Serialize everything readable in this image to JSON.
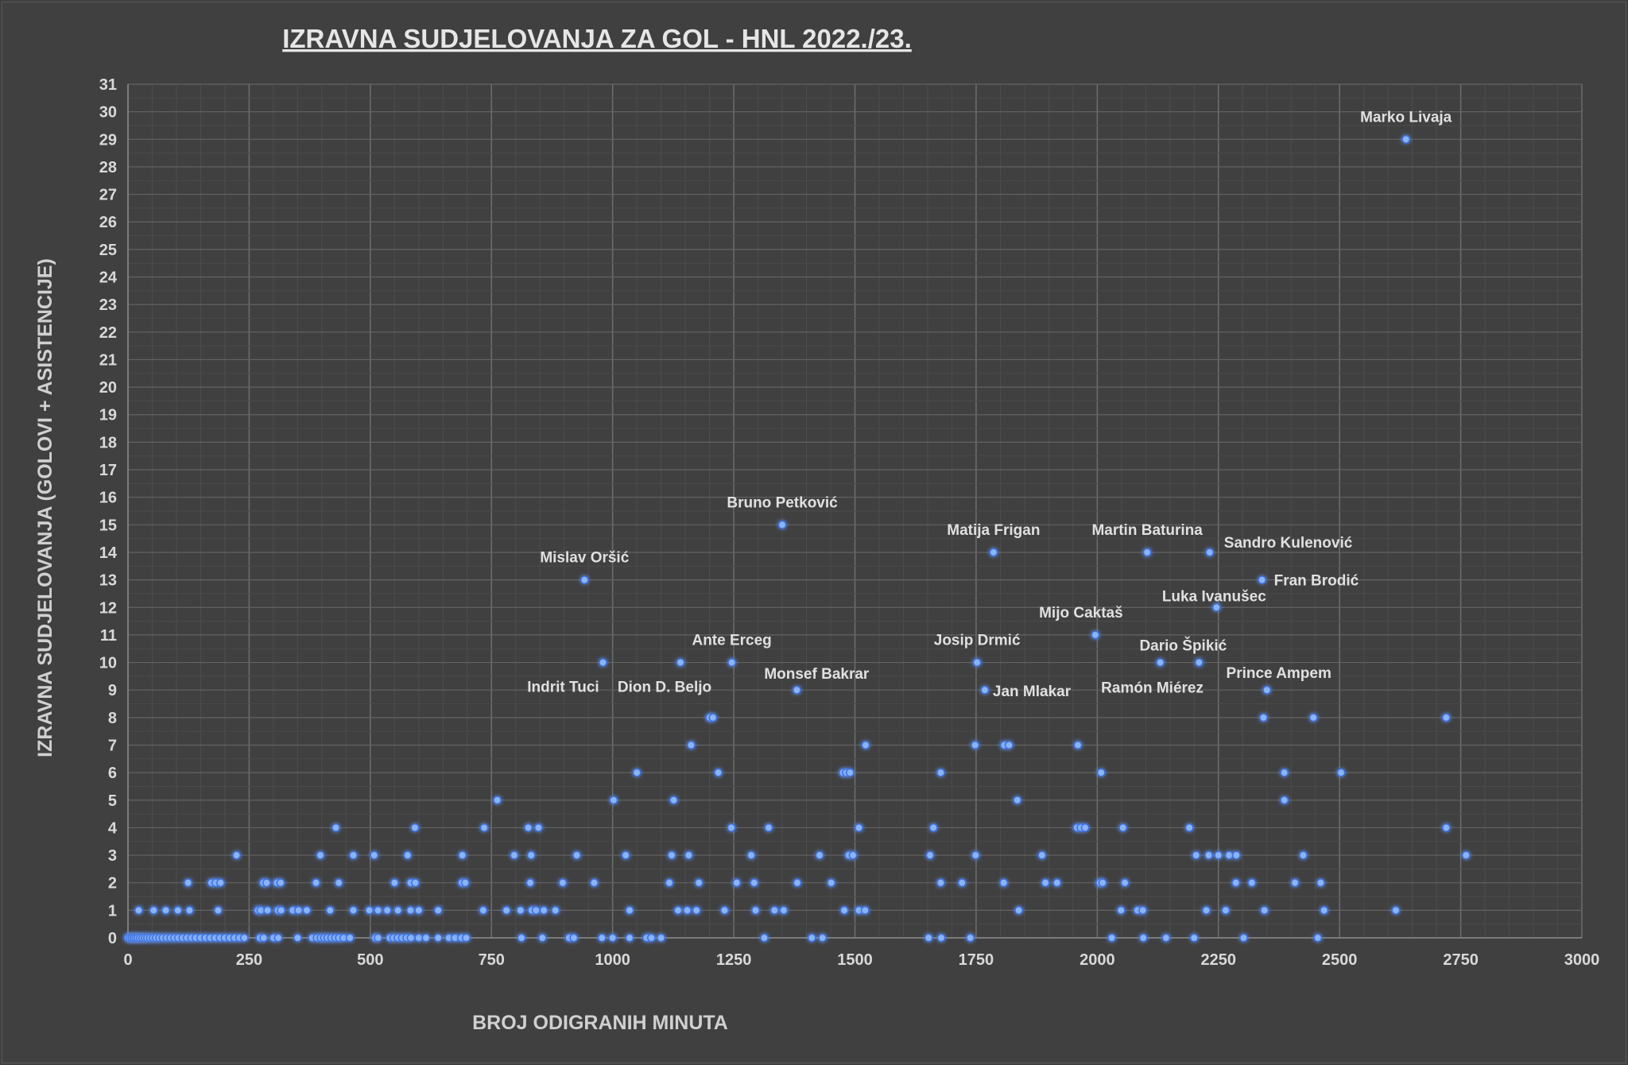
{
  "chart_data": {
    "type": "scatter",
    "title": "IZRAVNA SUDJELOVANJA ZA GOL - HNL 2022./23.",
    "xlabel": "BROJ ODIGRANIH MINUTA",
    "ylabel": "IZRAVNA SUDJELOVANJA (GOLOVI + ASISTENCIJE)",
    "xlim": [
      0,
      3000
    ],
    "ylim": [
      0,
      31
    ],
    "x_ticks": [
      0,
      250,
      500,
      750,
      1000,
      1250,
      1500,
      1750,
      2000,
      2250,
      2500,
      2750,
      3000
    ],
    "y_ticks": [
      0,
      1,
      2,
      3,
      4,
      5,
      6,
      7,
      8,
      9,
      10,
      11,
      12,
      13,
      14,
      15,
      16,
      17,
      18,
      19,
      20,
      21,
      22,
      23,
      24,
      25,
      26,
      27,
      28,
      29,
      30,
      31
    ],
    "grid": "major and minor",
    "marker_color": "#8ab4f8",
    "background_color": "#404040",
    "labeled_points": [
      {
        "name": "Marko Livaja",
        "x": 2637,
        "y": 29
      },
      {
        "name": "Bruno Petković",
        "x": 1350,
        "y": 15
      },
      {
        "name": "Matija Frigan",
        "x": 1786,
        "y": 14
      },
      {
        "name": "Martin Baturina",
        "x": 2103,
        "y": 14
      },
      {
        "name": "Sandro Kulenović",
        "x": 2232,
        "y": 14
      },
      {
        "name": "Mislav Oršić",
        "x": 942,
        "y": 13
      },
      {
        "name": "Fran Brodić",
        "x": 2340,
        "y": 13
      },
      {
        "name": "Luka Ivanušec",
        "x": 2246,
        "y": 12
      },
      {
        "name": "Mijo Caktaš",
        "x": 1996,
        "y": 11
      },
      {
        "name": "Ante Erceg",
        "x": 1246,
        "y": 10
      },
      {
        "name": "Josip Drmić",
        "x": 1752,
        "y": 10
      },
      {
        "name": "Dario Špikić",
        "x": 2210,
        "y": 10
      },
      {
        "name": "Indrit Tuci",
        "x": 980,
        "y": 10
      },
      {
        "name": "Dion D. Beljo",
        "x": 1140,
        "y": 10
      },
      {
        "name": "Monsef Bakrar",
        "x": 1380,
        "y": 9
      },
      {
        "name": "Jan Mlakar",
        "x": 1768,
        "y": 9
      },
      {
        "name": "Ramón Miérez",
        "x": 2130,
        "y": 10
      },
      {
        "name": "Prince Ampem",
        "x": 2350,
        "y": 9
      }
    ],
    "points": [
      [
        2637,
        29
      ],
      [
        1350,
        15
      ],
      [
        1786,
        14
      ],
      [
        2103,
        14
      ],
      [
        2232,
        14
      ],
      [
        942,
        13
      ],
      [
        2340,
        13
      ],
      [
        2246,
        12
      ],
      [
        1996,
        11
      ],
      [
        980,
        10
      ],
      [
        1140,
        10
      ],
      [
        1246,
        10
      ],
      [
        1752,
        10
      ],
      [
        2130,
        10
      ],
      [
        2210,
        10
      ],
      [
        1380,
        9
      ],
      [
        1768,
        9
      ],
      [
        2350,
        9
      ],
      [
        1200,
        8
      ],
      [
        1207,
        8
      ],
      [
        2343,
        8
      ],
      [
        2446,
        8
      ],
      [
        2720,
        8
      ],
      [
        1162,
        7
      ],
      [
        1522,
        7
      ],
      [
        1748,
        7
      ],
      [
        1808,
        7
      ],
      [
        1818,
        7
      ],
      [
        1960,
        7
      ],
      [
        1050,
        6
      ],
      [
        1218,
        6
      ],
      [
        1475,
        6
      ],
      [
        1482,
        6
      ],
      [
        1490,
        6
      ],
      [
        1677,
        6
      ],
      [
        2008,
        6
      ],
      [
        2386,
        6
      ],
      [
        2503,
        6
      ],
      [
        762,
        5
      ],
      [
        1002,
        5
      ],
      [
        1126,
        5
      ],
      [
        1835,
        5
      ],
      [
        2386,
        5
      ],
      [
        429,
        4
      ],
      [
        592,
        4
      ],
      [
        735,
        4
      ],
      [
        826,
        4
      ],
      [
        847,
        4
      ],
      [
        1245,
        4
      ],
      [
        1322,
        4
      ],
      [
        1508,
        4
      ],
      [
        1662,
        4
      ],
      [
        1958,
        4
      ],
      [
        1966,
        4
      ],
      [
        1975,
        4
      ],
      [
        2053,
        4
      ],
      [
        2190,
        4
      ],
      [
        2720,
        4
      ],
      [
        224,
        3
      ],
      [
        397,
        3
      ],
      [
        465,
        3
      ],
      [
        508,
        3
      ],
      [
        577,
        3
      ],
      [
        690,
        3
      ],
      [
        797,
        3
      ],
      [
        832,
        3
      ],
      [
        926,
        3
      ],
      [
        1027,
        3
      ],
      [
        1122,
        3
      ],
      [
        1157,
        3
      ],
      [
        1286,
        3
      ],
      [
        1427,
        3
      ],
      [
        1487,
        3
      ],
      [
        1496,
        3
      ],
      [
        1655,
        3
      ],
      [
        1749,
        3
      ],
      [
        1886,
        3
      ],
      [
        2204,
        3
      ],
      [
        2230,
        3
      ],
      [
        2250,
        3
      ],
      [
        2272,
        3
      ],
      [
        2287,
        3
      ],
      [
        2425,
        3
      ],
      [
        2761,
        3
      ],
      [
        124,
        2
      ],
      [
        172,
        2
      ],
      [
        181,
        2
      ],
      [
        191,
        2
      ],
      [
        279,
        2
      ],
      [
        286,
        2
      ],
      [
        307,
        2
      ],
      [
        315,
        2
      ],
      [
        388,
        2
      ],
      [
        435,
        2
      ],
      [
        550,
        2
      ],
      [
        583,
        2
      ],
      [
        593,
        2
      ],
      [
        689,
        2
      ],
      [
        696,
        2
      ],
      [
        830,
        2
      ],
      [
        897,
        2
      ],
      [
        962,
        2
      ],
      [
        1117,
        2
      ],
      [
        1178,
        2
      ],
      [
        1256,
        2
      ],
      [
        1292,
        2
      ],
      [
        1381,
        2
      ],
      [
        1451,
        2
      ],
      [
        1677,
        2
      ],
      [
        1721,
        2
      ],
      [
        1807,
        2
      ],
      [
        1893,
        2
      ],
      [
        1917,
        2
      ],
      [
        2005,
        2
      ],
      [
        2011,
        2
      ],
      [
        2057,
        2
      ],
      [
        2286,
        2
      ],
      [
        2319,
        2
      ],
      [
        2408,
        2
      ],
      [
        2461,
        2
      ],
      [
        22,
        1
      ],
      [
        53,
        1
      ],
      [
        78,
        1
      ],
      [
        103,
        1
      ],
      [
        127,
        1
      ],
      [
        186,
        1
      ],
      [
        268,
        1
      ],
      [
        274,
        1
      ],
      [
        288,
        1
      ],
      [
        309,
        1
      ],
      [
        316,
        1
      ],
      [
        340,
        1
      ],
      [
        352,
        1
      ],
      [
        369,
        1
      ],
      [
        417,
        1
      ],
      [
        465,
        1
      ],
      [
        498,
        1
      ],
      [
        516,
        1
      ],
      [
        535,
        1
      ],
      [
        557,
        1
      ],
      [
        583,
        1
      ],
      [
        600,
        1
      ],
      [
        640,
        1
      ],
      [
        733,
        1
      ],
      [
        781,
        1
      ],
      [
        810,
        1
      ],
      [
        833,
        1
      ],
      [
        842,
        1
      ],
      [
        858,
        1
      ],
      [
        882,
        1
      ],
      [
        1035,
        1
      ],
      [
        1135,
        1
      ],
      [
        1154,
        1
      ],
      [
        1173,
        1
      ],
      [
        1231,
        1
      ],
      [
        1295,
        1
      ],
      [
        1334,
        1
      ],
      [
        1353,
        1
      ],
      [
        1478,
        1
      ],
      [
        1508,
        1
      ],
      [
        1521,
        1
      ],
      [
        1838,
        1
      ],
      [
        2049,
        1
      ],
      [
        2083,
        1
      ],
      [
        2094,
        1
      ],
      [
        2225,
        1
      ],
      [
        2265,
        1
      ],
      [
        2345,
        1
      ],
      [
        2468,
        1
      ],
      [
        2616,
        1
      ],
      [
        0,
        0
      ],
      [
        4,
        0
      ],
      [
        8,
        0
      ],
      [
        12,
        0
      ],
      [
        16,
        0
      ],
      [
        20,
        0
      ],
      [
        25,
        0
      ],
      [
        30,
        0
      ],
      [
        35,
        0
      ],
      [
        40,
        0
      ],
      [
        46,
        0
      ],
      [
        52,
        0
      ],
      [
        58,
        0
      ],
      [
        65,
        0
      ],
      [
        72,
        0
      ],
      [
        80,
        0
      ],
      [
        88,
        0
      ],
      [
        96,
        0
      ],
      [
        104,
        0
      ],
      [
        113,
        0
      ],
      [
        122,
        0
      ],
      [
        131,
        0
      ],
      [
        140,
        0
      ],
      [
        150,
        0
      ],
      [
        160,
        0
      ],
      [
        170,
        0
      ],
      [
        180,
        0
      ],
      [
        190,
        0
      ],
      [
        200,
        0
      ],
      [
        210,
        0
      ],
      [
        220,
        0
      ],
      [
        230,
        0
      ],
      [
        240,
        0
      ],
      [
        272,
        0
      ],
      [
        280,
        0
      ],
      [
        300,
        0
      ],
      [
        310,
        0
      ],
      [
        350,
        0
      ],
      [
        380,
        0
      ],
      [
        390,
        0
      ],
      [
        398,
        0
      ],
      [
        405,
        0
      ],
      [
        412,
        0
      ],
      [
        420,
        0
      ],
      [
        428,
        0
      ],
      [
        436,
        0
      ],
      [
        445,
        0
      ],
      [
        458,
        0
      ],
      [
        510,
        0
      ],
      [
        516,
        0
      ],
      [
        540,
        0
      ],
      [
        548,
        0
      ],
      [
        557,
        0
      ],
      [
        566,
        0
      ],
      [
        575,
        0
      ],
      [
        584,
        0
      ],
      [
        600,
        0
      ],
      [
        615,
        0
      ],
      [
        640,
        0
      ],
      [
        662,
        0
      ],
      [
        675,
        0
      ],
      [
        688,
        0
      ],
      [
        698,
        0
      ],
      [
        812,
        0
      ],
      [
        855,
        0
      ],
      [
        910,
        0
      ],
      [
        920,
        0
      ],
      [
        978,
        0
      ],
      [
        1000,
        0
      ],
      [
        1035,
        0
      ],
      [
        1070,
        0
      ],
      [
        1080,
        0
      ],
      [
        1100,
        0
      ],
      [
        1313,
        0
      ],
      [
        1411,
        0
      ],
      [
        1433,
        0
      ],
      [
        1652,
        0
      ],
      [
        1678,
        0
      ],
      [
        1738,
        0
      ],
      [
        2030,
        0
      ],
      [
        2095,
        0
      ],
      [
        2142,
        0
      ],
      [
        2200,
        0
      ],
      [
        2302,
        0
      ],
      [
        2455,
        0
      ]
    ]
  }
}
